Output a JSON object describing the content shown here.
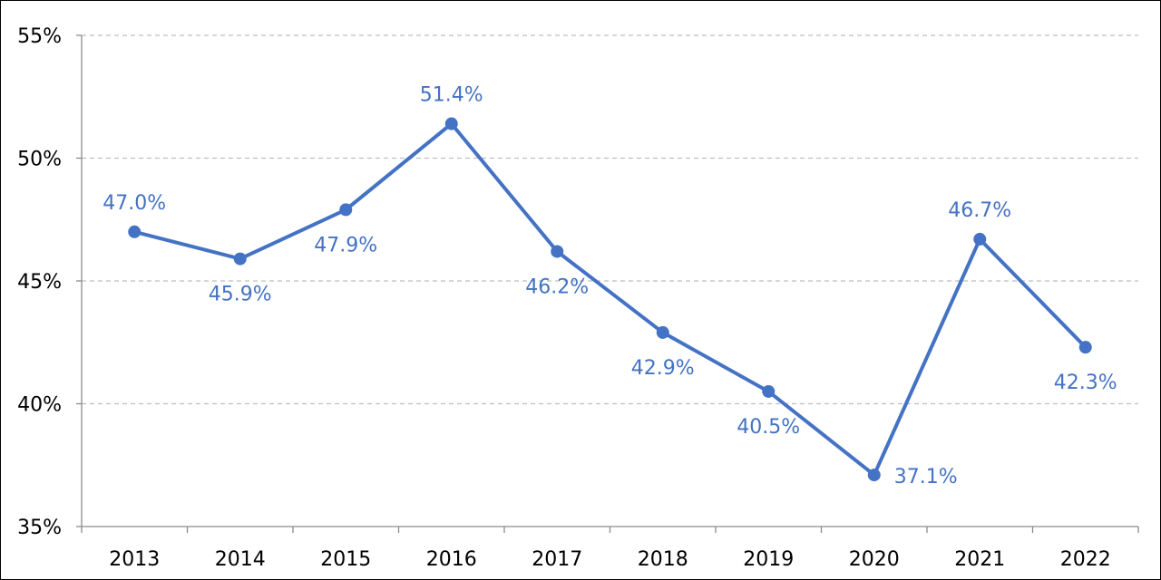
{
  "chart_data": {
    "type": "line",
    "title": "",
    "xlabel": "",
    "ylabel": "",
    "categories": [
      "2013",
      "2014",
      "2015",
      "2016",
      "2017",
      "2018",
      "2019",
      "2020",
      "2021",
      "2022"
    ],
    "series": [
      {
        "values": [
          47.0,
          45.9,
          47.9,
          51.4,
          46.2,
          42.9,
          40.5,
          37.1,
          46.7,
          42.3
        ],
        "labels": [
          "47.0%",
          "45.9%",
          "47.9%",
          "51.4%",
          "46.2%",
          "42.9%",
          "40.5%",
          "37.1%",
          "46.7%",
          "42.3%"
        ],
        "color": "#4472C4"
      }
    ],
    "ylim": [
      35,
      55
    ],
    "yticks": [
      35,
      40,
      45,
      50,
      55
    ],
    "ytick_labels": [
      "35%",
      "40%",
      "45%",
      "50%",
      "55%"
    ],
    "grid": true,
    "grid_style": "dashed horizontal",
    "legend": "none"
  }
}
